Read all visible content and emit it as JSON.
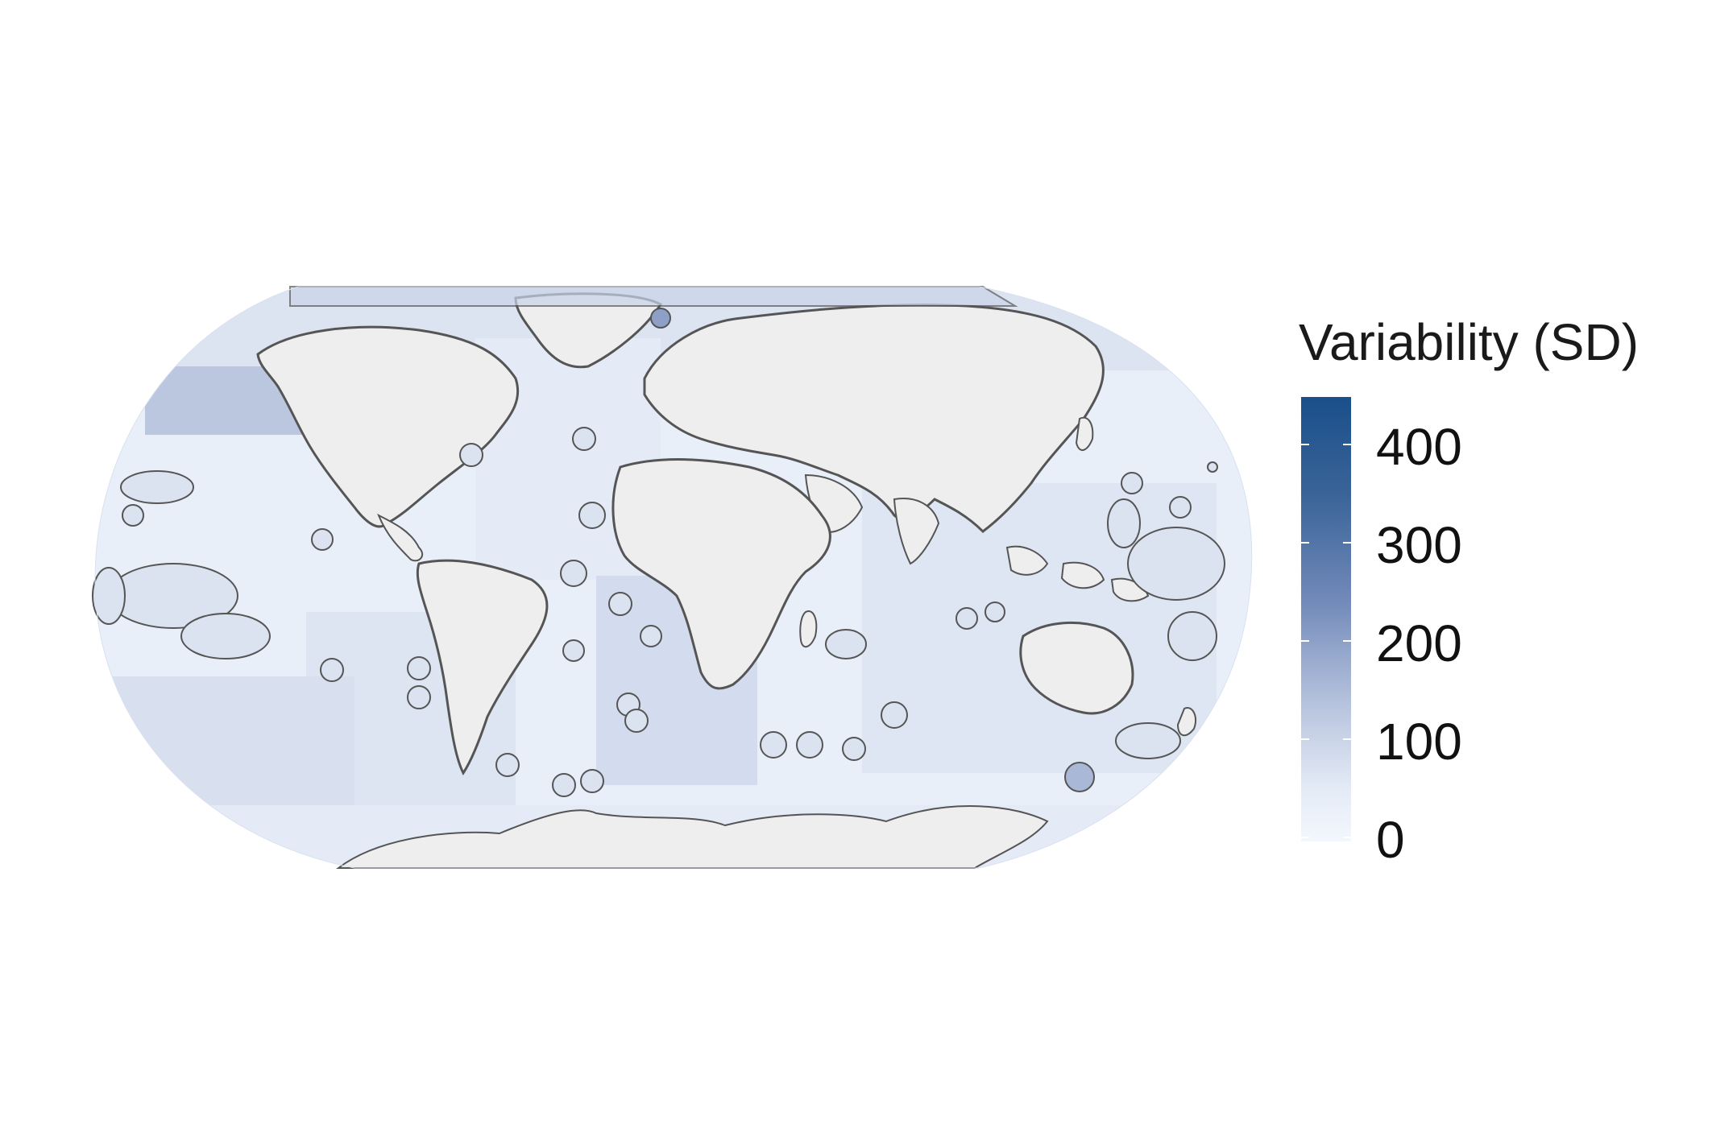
{
  "legend": {
    "title": "Variability (SD)",
    "ticks": [
      "400",
      "300",
      "200",
      "100",
      "0"
    ],
    "range": [
      0,
      450
    ]
  },
  "colors": {
    "land": "#eeeeee",
    "ocean_low": "#eef3fb",
    "ocean_mid": "#dbe3f1",
    "ocean_high": "#a9b8d6",
    "peak": "#6f88b8",
    "border": "#555555"
  }
}
